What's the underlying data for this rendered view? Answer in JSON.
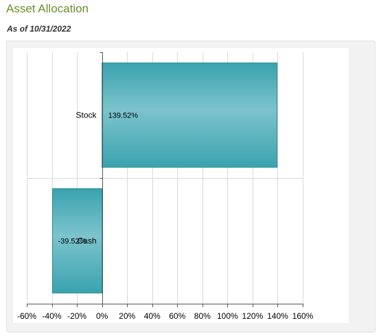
{
  "header": {
    "title": "Asset Allocation",
    "as_of": "As of 10/31/2022"
  },
  "chart_data": {
    "type": "bar",
    "orientation": "horizontal",
    "title": "",
    "xlabel": "",
    "ylabel": "",
    "categories": [
      "Stock",
      "Cash"
    ],
    "values": [
      139.52,
      -39.52
    ],
    "data_labels": [
      "139.52%",
      "-39.52%"
    ],
    "xlim": [
      -60,
      160
    ],
    "xticks": [
      -60,
      -40,
      -20,
      0,
      20,
      40,
      60,
      80,
      100,
      120,
      140,
      160
    ],
    "xtick_labels": [
      "-60%",
      "-40%",
      "-20%",
      "0%",
      "20%",
      "40%",
      "60%",
      "80%",
      "100%",
      "120%",
      "140%",
      "160%"
    ],
    "grid": true,
    "legend": "none",
    "colors": {
      "bar_edge": "#2a8a93",
      "bar_mid": "#7cc3cd",
      "bar_dark": "#3aa3ae",
      "grid": "#d9d9d9",
      "axis": "#555555"
    }
  }
}
